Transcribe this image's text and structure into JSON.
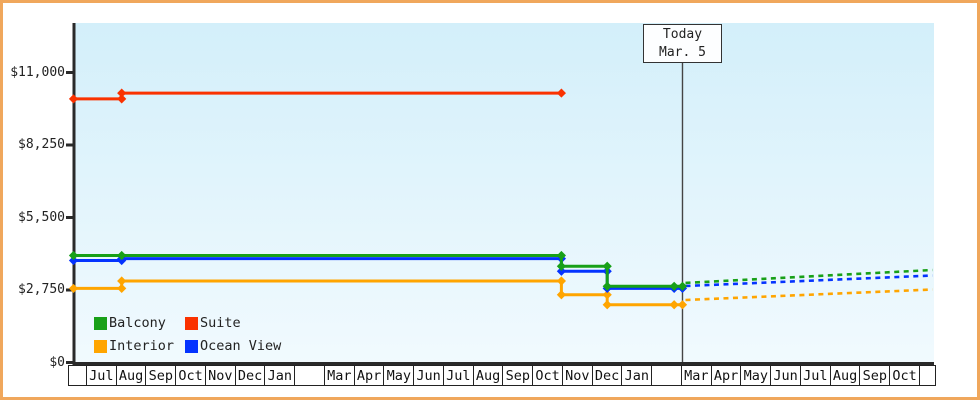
{
  "window": {
    "border_color": "#F0A75C"
  },
  "today_marker": {
    "line1": "Today",
    "line2": "Mar. 5",
    "month_offset": 20.05
  },
  "chart_data": {
    "type": "line",
    "title": "",
    "xlabel": "",
    "ylabel": "",
    "grid": false,
    "plot_background": {
      "top": "#D3EFFA",
      "bottom": "#F1FAFE"
    },
    "y_axis": {
      "ticks": [
        {
          "label": "$0",
          "value": 0
        },
        {
          "label": "$2,750",
          "value": 2750
        },
        {
          "label": "$5,500",
          "value": 5500
        },
        {
          "label": "$8,250",
          "value": 8250
        },
        {
          "label": "$11,000",
          "value": 11000
        }
      ],
      "max_value": 12880
    },
    "x_axis": {
      "cells": [
        "",
        "Jul",
        "Aug",
        "Sep",
        "Oct",
        "Nov",
        "Dec",
        "Jan",
        "",
        "Mar",
        "Apr",
        "May",
        "Jun",
        "Jul",
        "Aug",
        "Sep",
        "Oct",
        "Nov",
        "Dec",
        "Jan",
        "",
        "Mar",
        "Apr",
        "May",
        "Jun",
        "Jul",
        "Aug",
        "Sep",
        "Oct",
        ""
      ]
    },
    "series": [
      {
        "name": "Suite",
        "color": "#FA3200",
        "solid_points": [
          [
            -0.42,
            10000
          ],
          [
            1.2,
            10000
          ],
          [
            1.2,
            10220
          ],
          [
            15.98,
            10220
          ]
        ],
        "predicted_points": []
      },
      {
        "name": "Interior",
        "color": "#FFA500",
        "solid_points": [
          [
            -0.42,
            2810
          ],
          [
            1.2,
            2810
          ],
          [
            1.2,
            3090
          ],
          [
            15.98,
            3090
          ],
          [
            15.98,
            2570
          ],
          [
            17.52,
            2570
          ],
          [
            17.52,
            2190
          ],
          [
            19.77,
            2190
          ],
          [
            20.05,
            2190
          ]
        ],
        "predicted_points": [
          [
            20.15,
            2370
          ],
          [
            28.45,
            2770
          ]
        ]
      },
      {
        "name": "Ocean View",
        "color": "#0433FF",
        "solid_points": [
          [
            -0.42,
            3870
          ],
          [
            1.2,
            3870
          ],
          [
            1.2,
            3940
          ],
          [
            15.98,
            3940
          ],
          [
            15.98,
            3460
          ],
          [
            17.52,
            3460
          ],
          [
            17.52,
            2810
          ],
          [
            19.77,
            2810
          ],
          [
            20.05,
            2810
          ]
        ],
        "predicted_points": [
          [
            20.15,
            2900
          ],
          [
            28.45,
            3300
          ]
        ]
      },
      {
        "name": "Balcony",
        "color": "#18A018",
        "solid_points": [
          [
            -0.42,
            4060
          ],
          [
            1.2,
            4060
          ],
          [
            15.98,
            4060
          ],
          [
            15.98,
            3650
          ],
          [
            17.52,
            3650
          ],
          [
            17.52,
            2890
          ],
          [
            19.77,
            2890
          ],
          [
            20.05,
            2890
          ]
        ],
        "predicted_points": [
          [
            20.15,
            3020
          ],
          [
            28.45,
            3510
          ]
        ]
      }
    ],
    "legend": {
      "position": "bottom-left-inside",
      "entries": [
        {
          "label": "Balcony",
          "color": "#18A018"
        },
        {
          "label": "Suite",
          "color": "#FA3200"
        },
        {
          "label": "Interior",
          "color": "#FFA500"
        },
        {
          "label": "Ocean View",
          "color": "#0433FF"
        }
      ]
    }
  }
}
